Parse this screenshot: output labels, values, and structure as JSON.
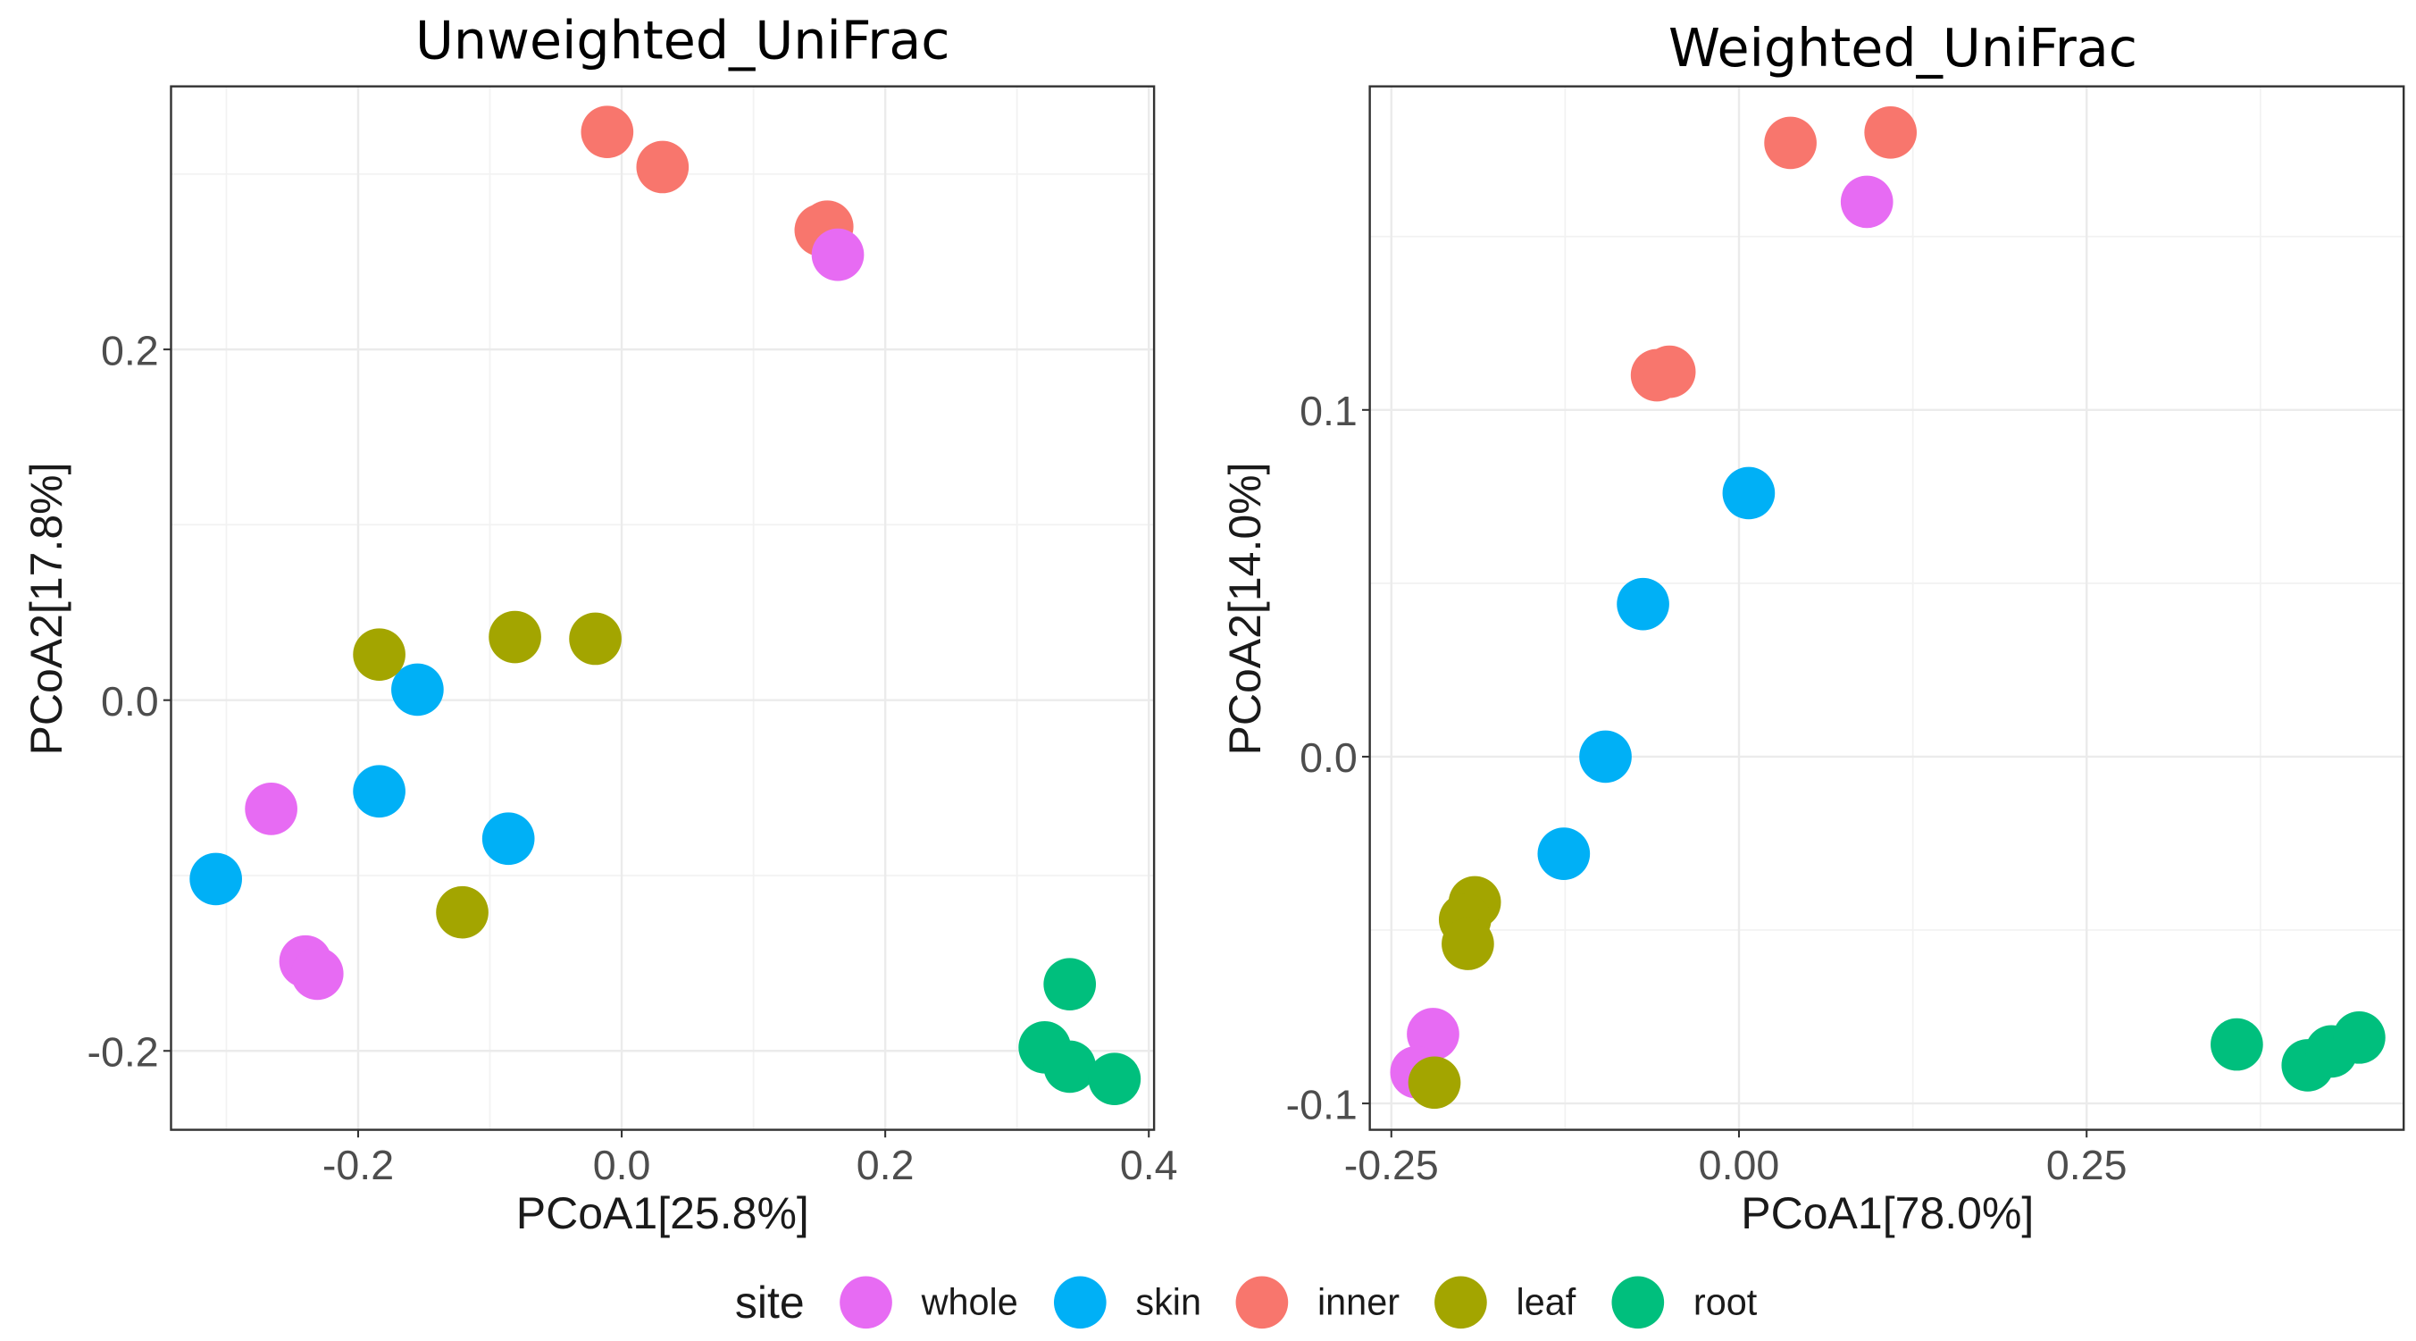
{
  "chart_data": [
    {
      "type": "scatter",
      "title": "Unweighted_UniFrac",
      "xlabel": "PCoA1[25.8%]",
      "ylabel": "PCoA2[17.8%]",
      "xlim": [
        -0.342,
        0.404
      ],
      "ylim": [
        -0.245,
        0.35
      ],
      "xticks": [
        -0.2,
        0.0,
        0.2,
        0.4
      ],
      "xtick_labels": [
        "-0.2",
        "0.0",
        "0.2",
        "0.4"
      ],
      "yticks": [
        -0.2,
        0.0,
        0.2
      ],
      "ytick_labels": [
        "-0.2",
        "0.0",
        "0.2"
      ],
      "grid": true,
      "series": [
        {
          "name": "inner",
          "points": [
            [
              -0.011,
              0.324
            ],
            [
              0.031,
              0.304
            ],
            [
              0.151,
              0.268
            ],
            [
              0.156,
              0.27
            ]
          ]
        },
        {
          "name": "whole",
          "points": [
            [
              0.164,
              0.254
            ],
            [
              -0.266,
              -0.062
            ],
            [
              -0.24,
              -0.149
            ],
            [
              -0.231,
              -0.156
            ]
          ]
        },
        {
          "name": "skin",
          "points": [
            [
              -0.155,
              0.006
            ],
            [
              -0.184,
              -0.052
            ],
            [
              -0.086,
              -0.079
            ],
            [
              -0.308,
              -0.102
            ]
          ]
        },
        {
          "name": "leaf",
          "points": [
            [
              -0.184,
              0.026
            ],
            [
              -0.081,
              0.036
            ],
            [
              -0.02,
              0.035
            ],
            [
              -0.121,
              -0.121
            ]
          ]
        },
        {
          "name": "root",
          "points": [
            [
              0.34,
              -0.162
            ],
            [
              0.321,
              -0.198
            ],
            [
              0.34,
              -0.209
            ],
            [
              0.374,
              -0.216
            ]
          ]
        }
      ]
    },
    {
      "type": "scatter",
      "title": "Weighted_UniFrac",
      "xlabel": "PCoA1[78.0%]",
      "ylabel": "PCoA2[14.0%]",
      "xlim": [
        -0.2655,
        0.478
      ],
      "ylim": [
        -0.1076,
        0.1933
      ],
      "xticks": [
        -0.25,
        0.0,
        0.25
      ],
      "xtick_labels": [
        "-0.25",
        "0.00",
        "0.25"
      ],
      "yticks": [
        -0.1,
        0.0,
        0.1
      ],
      "ytick_labels": [
        "-0.1",
        "0.0",
        "0.1"
      ],
      "grid": true,
      "series": [
        {
          "name": "inner",
          "points": [
            [
              0.037,
              0.177
            ],
            [
              0.109,
              0.18
            ],
            [
              -0.059,
              0.11
            ],
            [
              -0.05,
              0.111
            ]
          ]
        },
        {
          "name": "whole",
          "points": [
            [
              0.092,
              0.16
            ],
            [
              -0.22,
              -0.08
            ],
            [
              -0.232,
              -0.091
            ]
          ]
        },
        {
          "name": "skin",
          "points": [
            [
              0.007,
              0.076
            ],
            [
              -0.069,
              0.044
            ],
            [
              -0.096,
              0.0
            ],
            [
              -0.126,
              -0.028
            ]
          ]
        },
        {
          "name": "leaf",
          "points": [
            [
              -0.19,
              -0.042
            ],
            [
              -0.197,
              -0.047
            ],
            [
              -0.195,
              -0.054
            ],
            [
              -0.219,
              -0.094
            ]
          ]
        },
        {
          "name": "root",
          "points": [
            [
              0.358,
              -0.083
            ],
            [
              0.409,
              -0.089
            ],
            [
              0.426,
              -0.085
            ],
            [
              0.446,
              -0.081
            ]
          ]
        }
      ]
    }
  ],
  "legend": {
    "title": "site",
    "placement": "bottom",
    "items": [
      {
        "label": "whole",
        "color": "#E76BF3"
      },
      {
        "label": "skin",
        "color": "#00B0F6"
      },
      {
        "label": "inner",
        "color": "#F8766D"
      },
      {
        "label": "leaf",
        "color": "#A3A500"
      },
      {
        "label": "root",
        "color": "#00BF7D"
      }
    ]
  }
}
